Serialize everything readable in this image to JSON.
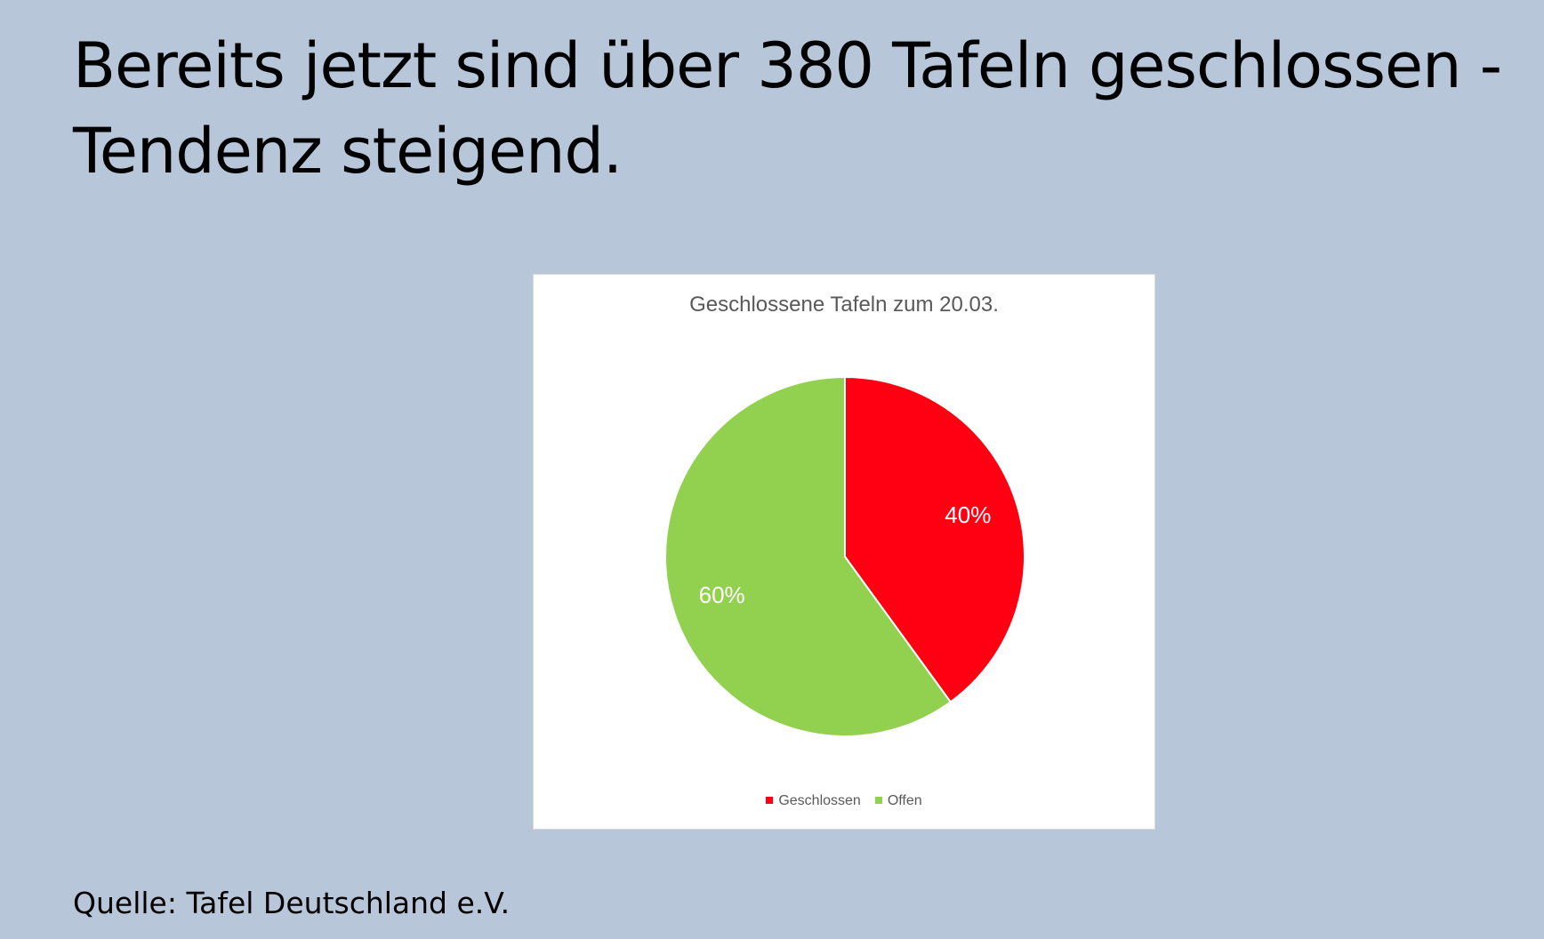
{
  "slide": {
    "title": "Bereits jetzt sind über 380 Tafeln geschlossen - Tendenz steigend.",
    "source": "Quelle: Tafel Deutschland e.V."
  },
  "chart_data": {
    "type": "pie",
    "title": "Geschlossene Tafeln zum 20.03.",
    "categories": [
      "Geschlossen",
      "Offen"
    ],
    "values": [
      40,
      60
    ],
    "data_labels": [
      "40%",
      "60%"
    ],
    "colors": [
      "#ff0013",
      "#92d050"
    ],
    "legend_position": "bottom"
  }
}
